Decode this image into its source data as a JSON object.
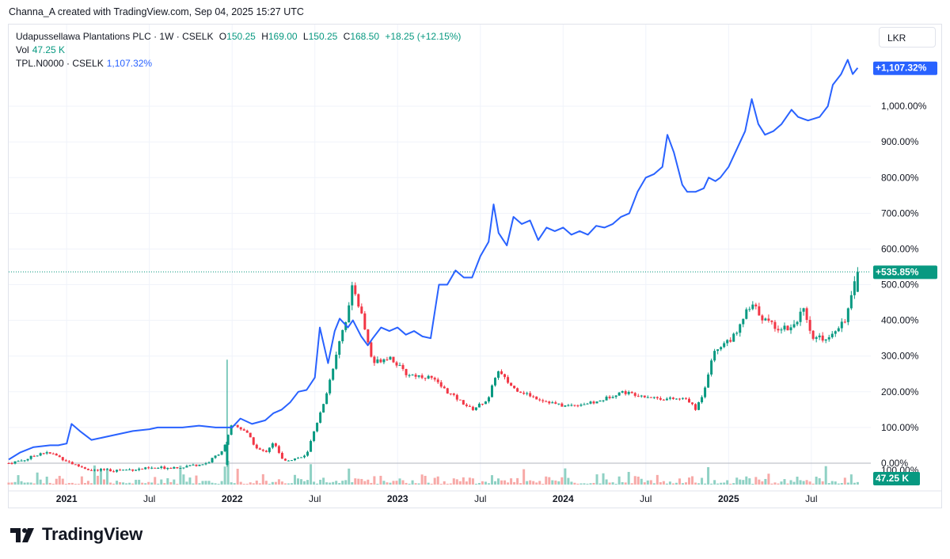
{
  "attribution": "Channa_A created with TradingView.com, Sep 04, 2025 15:27 UTC",
  "legend": {
    "title": "Udapussellawa Plantations PLC · 1W · CSELK",
    "o_label": "O",
    "o_value": "150.25",
    "h_label": "H",
    "h_value": "169.00",
    "l_label": "L",
    "l_value": "150.25",
    "c_label": "C",
    "c_value": "168.50",
    "change": "+18.25 (+12.15%)",
    "vol_label": "Vol",
    "vol_value": "47.25 K",
    "compare_label": "TPL.N0000 · CSELK",
    "compare_value": "1,107.32%"
  },
  "currency": "LKR",
  "logo_text": "TradingView",
  "colors": {
    "up": "#089981",
    "down": "#f23645",
    "compare": "#2962ff",
    "up_vol": "#8fd1c4",
    "down_vol": "#f7a9a7"
  },
  "chart_data": {
    "type": "candlestick",
    "y_axis": {
      "unit": "percent",
      "ticks": [
        "0.00%",
        "100.00%",
        "200.00%",
        "300.00%",
        "400.00%",
        "500.00%",
        "600.00%",
        "700.00%",
        "800.00%",
        "900.00%",
        "1,000.00%"
      ],
      "tick_values": [
        0,
        100,
        200,
        300,
        400,
        500,
        600,
        700,
        800,
        900,
        1000
      ],
      "range": [
        -60,
        1160
      ],
      "clipped_tick": "100.00%"
    },
    "x_axis": {
      "ticks": [
        {
          "label": "2021",
          "t": 2021.0,
          "bold": true
        },
        {
          "label": "Jul",
          "t": 2021.5,
          "bold": false
        },
        {
          "label": "2022",
          "t": 2022.0,
          "bold": true
        },
        {
          "label": "Jul",
          "t": 2022.5,
          "bold": false
        },
        {
          "label": "2023",
          "t": 2023.0,
          "bold": true
        },
        {
          "label": "Jul",
          "t": 2023.5,
          "bold": false
        },
        {
          "label": "2024",
          "t": 2024.0,
          "bold": true
        },
        {
          "label": "Jul",
          "t": 2024.5,
          "bold": false
        },
        {
          "label": "2025",
          "t": 2025.0,
          "bold": true
        },
        {
          "label": "Jul",
          "t": 2025.5,
          "bold": false
        }
      ],
      "range": [
        2020.65,
        2025.85
      ]
    },
    "price_series_label": "+535.85%",
    "price_anchors": [
      [
        2020.65,
        0
      ],
      [
        2020.75,
        10
      ],
      [
        2020.85,
        30
      ],
      [
        2020.92,
        25
      ],
      [
        2021.05,
        -5
      ],
      [
        2021.15,
        -20
      ],
      [
        2021.3,
        -20
      ],
      [
        2021.5,
        -15
      ],
      [
        2021.7,
        -10
      ],
      [
        2021.85,
        0
      ],
      [
        2021.95,
        40
      ],
      [
        2022.0,
        110
      ],
      [
        2022.08,
        90
      ],
      [
        2022.15,
        40
      ],
      [
        2022.2,
        30
      ],
      [
        2022.25,
        60
      ],
      [
        2022.3,
        10
      ],
      [
        2022.35,
        10
      ],
      [
        2022.45,
        20
      ],
      [
        2022.5,
        100
      ],
      [
        2022.55,
        160
      ],
      [
        2022.6,
        250
      ],
      [
        2022.65,
        350
      ],
      [
        2022.7,
        420
      ],
      [
        2022.73,
        500
      ],
      [
        2022.78,
        420
      ],
      [
        2022.85,
        280
      ],
      [
        2022.95,
        300
      ],
      [
        2023.05,
        250
      ],
      [
        2023.2,
        240
      ],
      [
        2023.3,
        200
      ],
      [
        2023.45,
        150
      ],
      [
        2023.55,
        180
      ],
      [
        2023.6,
        260
      ],
      [
        2023.7,
        210
      ],
      [
        2023.85,
        180
      ],
      [
        2024.0,
        160
      ],
      [
        2024.2,
        170
      ],
      [
        2024.35,
        200
      ],
      [
        2024.6,
        180
      ],
      [
        2024.75,
        180
      ],
      [
        2024.8,
        150
      ],
      [
        2024.85,
        200
      ],
      [
        2024.9,
        300
      ],
      [
        2024.95,
        330
      ],
      [
        2025.05,
        360
      ],
      [
        2025.1,
        420
      ],
      [
        2025.15,
        440
      ],
      [
        2025.22,
        400
      ],
      [
        2025.3,
        380
      ],
      [
        2025.38,
        380
      ],
      [
        2025.45,
        430
      ],
      [
        2025.5,
        350
      ],
      [
        2025.6,
        350
      ],
      [
        2025.65,
        380
      ],
      [
        2025.7,
        400
      ],
      [
        2025.73,
        440
      ],
      [
        2025.78,
        535.85
      ]
    ],
    "compare_series": {
      "label": "+1,107.32%",
      "points": [
        [
          2020.65,
          10
        ],
        [
          2020.72,
          30
        ],
        [
          2020.8,
          45
        ],
        [
          2020.9,
          50
        ],
        [
          2020.95,
          50
        ],
        [
          2021.0,
          55
        ],
        [
          2021.03,
          110
        ],
        [
          2021.08,
          90
        ],
        [
          2021.15,
          65
        ],
        [
          2021.2,
          70
        ],
        [
          2021.3,
          80
        ],
        [
          2021.4,
          90
        ],
        [
          2021.5,
          95
        ],
        [
          2021.55,
          100
        ],
        [
          2021.6,
          100
        ],
        [
          2021.7,
          100
        ],
        [
          2021.8,
          105
        ],
        [
          2021.9,
          100
        ],
        [
          2022.0,
          100
        ],
        [
          2022.05,
          125
        ],
        [
          2022.12,
          110
        ],
        [
          2022.2,
          120
        ],
        [
          2022.25,
          140
        ],
        [
          2022.3,
          150
        ],
        [
          2022.35,
          170
        ],
        [
          2022.4,
          200
        ],
        [
          2022.45,
          205
        ],
        [
          2022.5,
          240
        ],
        [
          2022.53,
          380
        ],
        [
          2022.58,
          280
        ],
        [
          2022.62,
          370
        ],
        [
          2022.65,
          405
        ],
        [
          2022.7,
          380
        ],
        [
          2022.73,
          400
        ],
        [
          2022.78,
          355
        ],
        [
          2022.82,
          330
        ],
        [
          2022.85,
          350
        ],
        [
          2022.9,
          380
        ],
        [
          2022.95,
          370
        ],
        [
          2023.0,
          380
        ],
        [
          2023.05,
          360
        ],
        [
          2023.1,
          370
        ],
        [
          2023.15,
          355
        ],
        [
          2023.2,
          350
        ],
        [
          2023.25,
          500
        ],
        [
          2023.3,
          500
        ],
        [
          2023.35,
          540
        ],
        [
          2023.4,
          520
        ],
        [
          2023.45,
          520
        ],
        [
          2023.5,
          580
        ],
        [
          2023.55,
          620
        ],
        [
          2023.58,
          725
        ],
        [
          2023.61,
          645
        ],
        [
          2023.66,
          610
        ],
        [
          2023.7,
          690
        ],
        [
          2023.75,
          670
        ],
        [
          2023.8,
          680
        ],
        [
          2023.85,
          625
        ],
        [
          2023.9,
          660
        ],
        [
          2023.95,
          650
        ],
        [
          2024.0,
          660
        ],
        [
          2024.05,
          640
        ],
        [
          2024.1,
          650
        ],
        [
          2024.15,
          640
        ],
        [
          2024.2,
          665
        ],
        [
          2024.25,
          660
        ],
        [
          2024.3,
          670
        ],
        [
          2024.35,
          690
        ],
        [
          2024.4,
          700
        ],
        [
          2024.45,
          760
        ],
        [
          2024.5,
          800
        ],
        [
          2024.55,
          810
        ],
        [
          2024.6,
          830
        ],
        [
          2024.63,
          920
        ],
        [
          2024.67,
          870
        ],
        [
          2024.72,
          780
        ],
        [
          2024.75,
          760
        ],
        [
          2024.8,
          760
        ],
        [
          2024.85,
          770
        ],
        [
          2024.88,
          800
        ],
        [
          2024.92,
          790
        ],
        [
          2024.95,
          800
        ],
        [
          2025.0,
          830
        ],
        [
          2025.05,
          880
        ],
        [
          2025.1,
          930
        ],
        [
          2025.14,
          1020
        ],
        [
          2025.18,
          950
        ],
        [
          2025.22,
          920
        ],
        [
          2025.27,
          930
        ],
        [
          2025.32,
          950
        ],
        [
          2025.38,
          990
        ],
        [
          2025.42,
          970
        ],
        [
          2025.48,
          960
        ],
        [
          2025.55,
          970
        ],
        [
          2025.6,
          1000
        ],
        [
          2025.63,
          1060
        ],
        [
          2025.68,
          1090
        ],
        [
          2025.72,
          1130
        ],
        [
          2025.75,
          1090
        ],
        [
          2025.78,
          1107.32
        ]
      ]
    },
    "volume_label": "47.25 K",
    "volume_axis_tick": "100.00%",
    "price_line": 535.85,
    "zero_line": 0
  }
}
